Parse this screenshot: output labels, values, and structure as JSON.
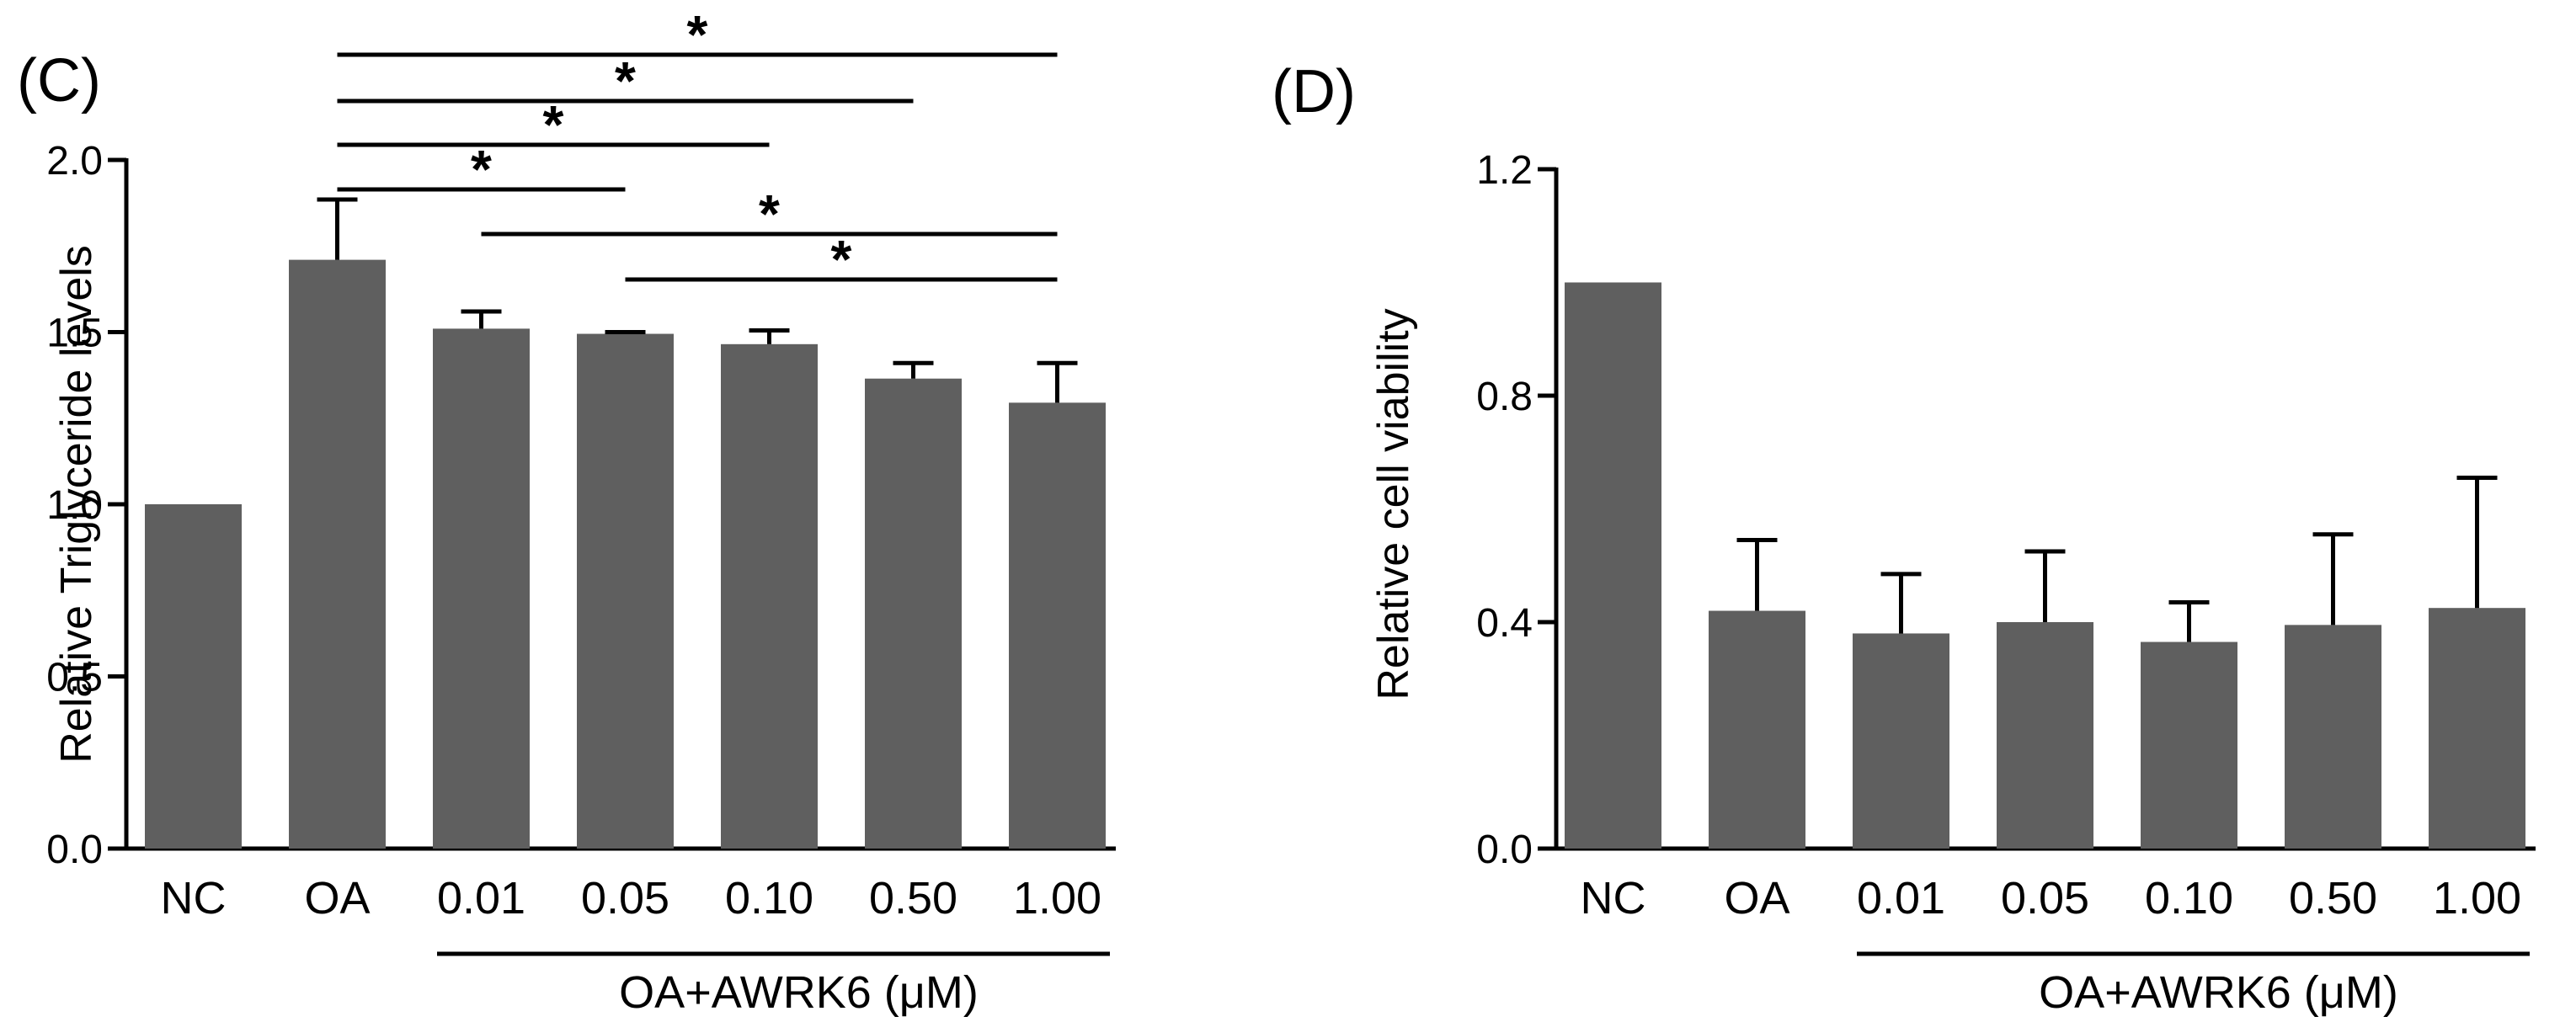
{
  "chart_data": [
    {
      "type": "bar",
      "panel_label": "(C)",
      "ylabel": "Relative Triglyceride levels",
      "categories": [
        "NC",
        "OA",
        "0.01",
        "0.05",
        "0.10",
        "0.50",
        "1.00"
      ],
      "values": [
        1.0,
        1.71,
        1.51,
        1.495,
        1.465,
        1.365,
        1.295
      ],
      "errors": [
        0.0,
        0.175,
        0.05,
        0.005,
        0.04,
        0.045,
        0.115
      ],
      "ylim": [
        0,
        2.0
      ],
      "yticks": [
        "0.0",
        "0.5",
        "1.0",
        "1.5",
        "2.0"
      ],
      "group_label": "OA+AWRK6 (μM)",
      "group_range": [
        2,
        6
      ],
      "significance": [
        {
          "from": 1,
          "to": 6,
          "label": "*"
        },
        {
          "from": 1,
          "to": 5,
          "label": "*"
        },
        {
          "from": 1,
          "to": 4,
          "label": "*"
        },
        {
          "from": 1,
          "to": 3,
          "label": "*"
        },
        {
          "from": 2,
          "to": 6,
          "label": "*"
        },
        {
          "from": 3,
          "to": 6,
          "label": "*"
        }
      ],
      "grid": false,
      "legend": "none"
    },
    {
      "type": "bar",
      "panel_label": "(D)",
      "ylabel": "Relative cell viability",
      "categories": [
        "NC",
        "OA",
        "0.01",
        "0.05",
        "0.10",
        "0.50",
        "1.00"
      ],
      "values": [
        1.0,
        0.42,
        0.38,
        0.4,
        0.365,
        0.395,
        0.425
      ],
      "errors": [
        0.0,
        0.125,
        0.105,
        0.125,
        0.07,
        0.16,
        0.23
      ],
      "ylim": [
        0,
        1.2
      ],
      "yticks": [
        "0.0",
        "0.4",
        "0.8",
        "1.2"
      ],
      "group_label": "OA+AWRK6 (μM)",
      "group_range": [
        2,
        6
      ],
      "significance": [],
      "grid": false,
      "legend": "none"
    }
  ]
}
